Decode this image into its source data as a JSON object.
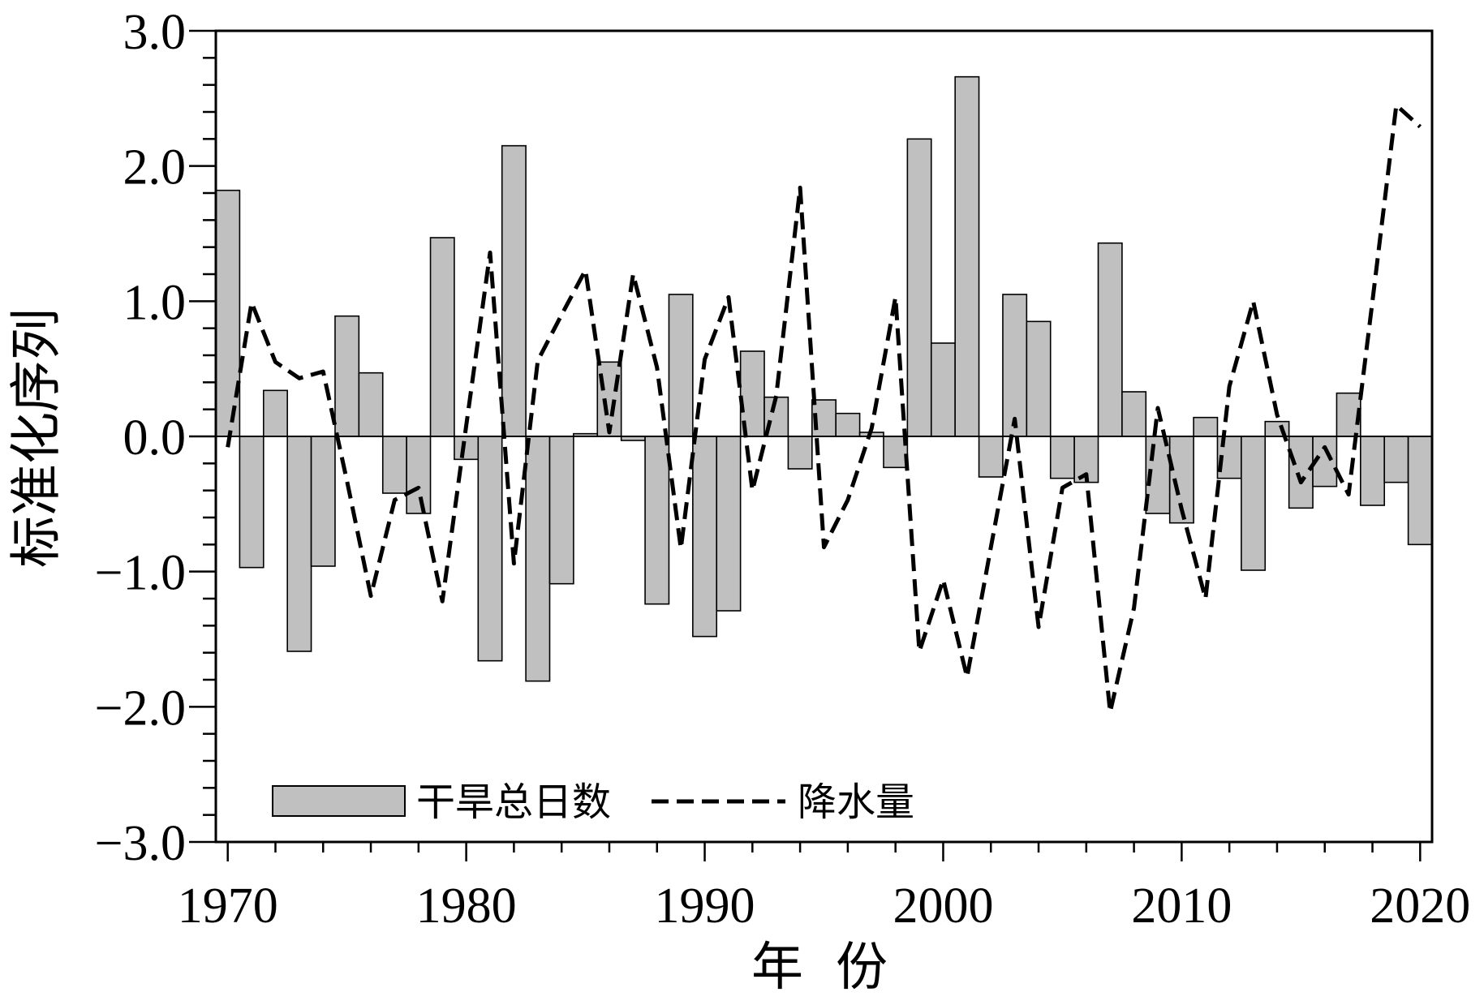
{
  "chart_data": {
    "type": "bar",
    "x": [
      1970,
      1971,
      1972,
      1973,
      1974,
      1975,
      1976,
      1977,
      1978,
      1979,
      1980,
      1981,
      1982,
      1983,
      1984,
      1985,
      1986,
      1987,
      1988,
      1989,
      1990,
      1991,
      1992,
      1993,
      1994,
      1995,
      1996,
      1997,
      1998,
      1999,
      2000,
      2001,
      2002,
      2003,
      2004,
      2005,
      2006,
      2007,
      2008,
      2009,
      2010,
      2011,
      2012,
      2013,
      2014,
      2015,
      2016,
      2017,
      2018,
      2019,
      2020
    ],
    "series": [
      {
        "name": "干旱总日数",
        "type": "bar",
        "values": [
          1.82,
          -0.97,
          0.34,
          -1.59,
          -0.96,
          0.89,
          0.47,
          -0.42,
          -0.57,
          1.47,
          -0.17,
          -1.66,
          2.15,
          -1.81,
          -1.09,
          0.02,
          0.55,
          -0.03,
          -1.24,
          1.05,
          -1.48,
          -1.29,
          0.63,
          0.29,
          -0.24,
          0.27,
          0.17,
          0.03,
          -0.23,
          2.2,
          0.69,
          2.66,
          -0.3,
          1.05,
          0.85,
          -0.31,
          -0.34,
          1.43,
          0.33,
          -0.57,
          -0.64,
          0.14,
          -0.31,
          -0.99,
          0.11,
          -0.53,
          -0.37,
          0.32,
          -0.51,
          -0.34,
          -0.8
        ]
      },
      {
        "name": "降水量",
        "type": "line",
        "values": [
          -0.08,
          0.99,
          0.55,
          0.43,
          0.48,
          -0.33,
          -1.18,
          -0.47,
          -0.38,
          -1.22,
          0.08,
          1.36,
          -0.94,
          0.56,
          0.9,
          1.23,
          0.03,
          1.2,
          0.51,
          -0.83,
          0.57,
          1.03,
          -0.4,
          0.3,
          1.84,
          -0.82,
          -0.47,
          0.06,
          1.03,
          -1.59,
          -1.06,
          -1.78,
          -0.82,
          0.13,
          -1.41,
          -0.38,
          -0.28,
          -2.04,
          -1.27,
          0.21,
          -0.54,
          -1.2,
          0.37,
          1.0,
          0.16,
          -0.34,
          -0.08,
          -0.43,
          1.0,
          2.45,
          2.29
        ]
      }
    ],
    "xlabel": "年 份",
    "ylabel": "标准化序列",
    "xlim": [
      1969.5,
      2020.5
    ],
    "ylim": [
      -3.0,
      3.0
    ],
    "xticks": [
      "1970",
      "1980",
      "1990",
      "2000",
      "2010",
      "2020"
    ],
    "yticks": [
      "3.0",
      "2.0",
      "1.0",
      "0.0",
      "−1.0",
      "−2.0",
      "−3.0"
    ],
    "grid": false,
    "legend": "bottom-left",
    "colors": {
      "bar_fill": "#c0c0c0",
      "bar_edge": "#000000",
      "line": "#000000"
    }
  }
}
